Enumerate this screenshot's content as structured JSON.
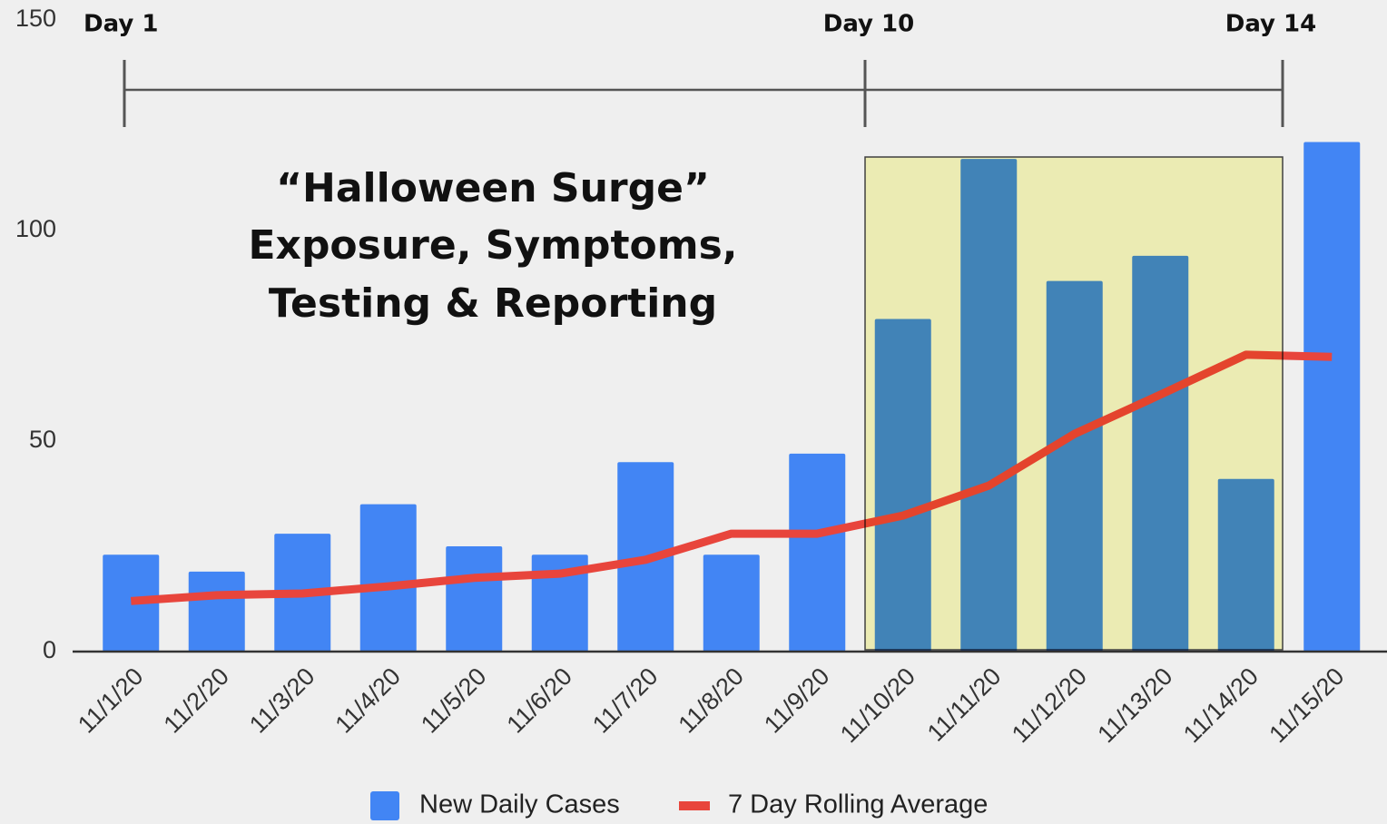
{
  "chart_data": {
    "type": "bar_line",
    "title_lines": [
      "“Halloween Surge”",
      "Exposure, Symptoms,",
      "Testing & Reporting"
    ],
    "annotations": [
      "Day 1",
      "Day 10",
      "Day 14"
    ],
    "categories": [
      "11/1/20",
      "11/2/20",
      "11/3/20",
      "11/4/20",
      "11/5/20",
      "11/6/20",
      "11/7/20",
      "11/8/20",
      "11/9/20",
      "11/10/20",
      "11/11/20",
      "11/12/20",
      "11/13/20",
      "11/14/20",
      "11/15/20"
    ],
    "series": [
      {
        "name": "New Daily Cases",
        "type": "bar",
        "color": "#4285f4",
        "values": [
          23,
          19,
          28,
          35,
          25,
          23,
          45,
          23,
          47,
          79,
          117,
          88,
          94,
          41,
          121
        ]
      },
      {
        "name": "7 Day Rolling Average",
        "type": "line",
        "color": "#e8453c",
        "values": [
          12,
          13.4,
          13.8,
          15.5,
          17.5,
          18.5,
          21.8,
          28,
          28,
          32.3,
          39.4,
          51.7,
          61,
          70.5,
          70
        ]
      }
    ],
    "ylim": [
      0,
      150
    ],
    "yticks": [
      0,
      50,
      100,
      150
    ],
    "legend": "bottom"
  }
}
